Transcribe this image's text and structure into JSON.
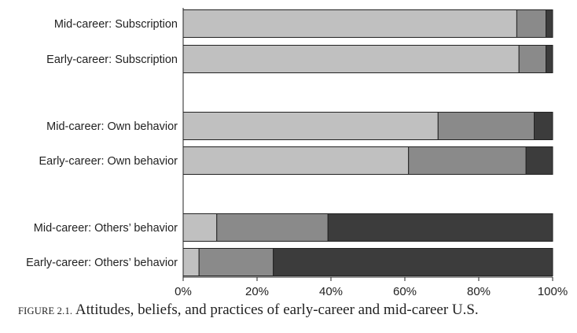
{
  "chart_data": {
    "type": "bar",
    "orientation": "horizontal",
    "stacked": true,
    "categories": [
      "Mid-career: Subscription",
      "Early-career: Subscription",
      "Mid-career: Own behavior",
      "Early-career: Own behavior",
      "Mid-career: Others’ behavior",
      "Early-career: Others’ behavior"
    ],
    "group_breaks_after": [
      1,
      3
    ],
    "series": [
      {
        "color": "#c0c0c0",
        "values": [
          90.3,
          90.9,
          69.0,
          61.0,
          9.1,
          4.3
        ]
      },
      {
        "color": "#8a8a8a",
        "values": [
          7.9,
          7.3,
          26.0,
          31.8,
          30.1,
          20.1
        ]
      },
      {
        "color": "#3c3c3c",
        "values": [
          1.8,
          1.8,
          5.0,
          7.2,
          60.8,
          75.6
        ]
      }
    ],
    "xlim": [
      0,
      100
    ],
    "xticks": [
      "0%",
      "20%",
      "40%",
      "60%",
      "80%",
      "100%"
    ],
    "grid": false,
    "legend": "none"
  },
  "caption": {
    "figure_label": "FIGURE 2.1.",
    "text": " Attitudes, beliefs, and practices of early-career and mid-career U.S."
  }
}
